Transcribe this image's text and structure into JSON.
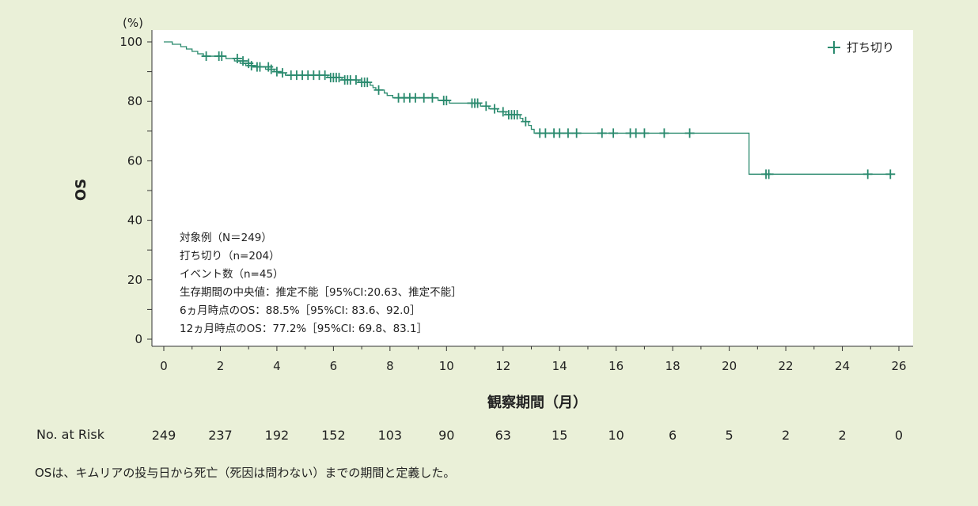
{
  "chart_data": {
    "type": "line",
    "subtype": "kaplan-meier",
    "title": "",
    "xlabel": "観察期間（月）",
    "ylabel": "OS",
    "yunit": "(%)",
    "xlim": [
      0,
      26
    ],
    "ylim": [
      0,
      100
    ],
    "x_ticks": [
      0,
      2,
      4,
      6,
      8,
      10,
      12,
      14,
      16,
      18,
      20,
      22,
      24,
      26
    ],
    "y_ticks": [
      0,
      20,
      40,
      60,
      80,
      100
    ],
    "legend": {
      "label": "打ち切り",
      "position": "top-right"
    },
    "series": [
      {
        "name": "OS",
        "color": "#2a8a6e",
        "steps": [
          [
            0,
            100
          ],
          [
            0.3,
            99.2
          ],
          [
            0.6,
            98.4
          ],
          [
            0.8,
            97.6
          ],
          [
            1.0,
            96.8
          ],
          [
            1.2,
            96.0
          ],
          [
            1.4,
            95.2
          ],
          [
            2.2,
            94.4
          ],
          [
            2.5,
            93.6
          ],
          [
            2.7,
            92.8
          ],
          [
            2.9,
            92.0
          ],
          [
            3.2,
            91.6
          ],
          [
            3.6,
            90.8
          ],
          [
            3.9,
            90.0
          ],
          [
            4.1,
            89.6
          ],
          [
            4.3,
            88.8
          ],
          [
            5.8,
            88.0
          ],
          [
            6.3,
            87.2
          ],
          [
            6.9,
            86.4
          ],
          [
            7.3,
            85.4
          ],
          [
            7.4,
            84.6
          ],
          [
            7.5,
            83.8
          ],
          [
            7.8,
            82.8
          ],
          [
            7.9,
            82.0
          ],
          [
            8.1,
            81.2
          ],
          [
            9.7,
            80.3
          ],
          [
            10.1,
            79.4
          ],
          [
            11.2,
            78.4
          ],
          [
            11.5,
            77.5
          ],
          [
            11.8,
            76.5
          ],
          [
            12.1,
            75.5
          ],
          [
            12.6,
            74.3
          ],
          [
            12.7,
            73.2
          ],
          [
            12.9,
            71.9
          ],
          [
            13.0,
            70.6
          ],
          [
            13.1,
            69.3
          ],
          [
            20.7,
            55.5
          ]
        ],
        "censors": [
          [
            1.5,
            95.2
          ],
          [
            1.95,
            95.2
          ],
          [
            2.05,
            95.2
          ],
          [
            2.6,
            94.4
          ],
          [
            2.8,
            93.6
          ],
          [
            3.0,
            92.8
          ],
          [
            3.1,
            92.0
          ],
          [
            3.3,
            91.6
          ],
          [
            3.4,
            91.6
          ],
          [
            3.7,
            91.6
          ],
          [
            3.8,
            90.8
          ],
          [
            4.0,
            90.0
          ],
          [
            4.2,
            89.6
          ],
          [
            4.5,
            88.8
          ],
          [
            4.7,
            88.8
          ],
          [
            4.9,
            88.8
          ],
          [
            5.1,
            88.8
          ],
          [
            5.3,
            88.8
          ],
          [
            5.5,
            88.8
          ],
          [
            5.7,
            88.8
          ],
          [
            5.9,
            88.0
          ],
          [
            6.0,
            88.0
          ],
          [
            6.1,
            88.0
          ],
          [
            6.2,
            88.0
          ],
          [
            6.4,
            87.2
          ],
          [
            6.5,
            87.2
          ],
          [
            6.6,
            87.2
          ],
          [
            6.8,
            87.2
          ],
          [
            7.0,
            86.4
          ],
          [
            7.1,
            86.4
          ],
          [
            7.2,
            86.4
          ],
          [
            7.6,
            83.8
          ],
          [
            8.3,
            81.2
          ],
          [
            8.5,
            81.2
          ],
          [
            8.7,
            81.2
          ],
          [
            8.9,
            81.2
          ],
          [
            9.2,
            81.2
          ],
          [
            9.5,
            81.2
          ],
          [
            9.9,
            80.3
          ],
          [
            10.0,
            80.3
          ],
          [
            10.9,
            79.4
          ],
          [
            11.0,
            79.4
          ],
          [
            11.1,
            79.4
          ],
          [
            11.4,
            78.4
          ],
          [
            11.7,
            77.5
          ],
          [
            12.0,
            76.5
          ],
          [
            12.2,
            75.5
          ],
          [
            12.3,
            75.5
          ],
          [
            12.4,
            75.5
          ],
          [
            12.5,
            75.5
          ],
          [
            12.8,
            73.2
          ],
          [
            13.3,
            69.3
          ],
          [
            13.5,
            69.3
          ],
          [
            13.8,
            69.3
          ],
          [
            14.0,
            69.3
          ],
          [
            14.3,
            69.3
          ],
          [
            14.6,
            69.3
          ],
          [
            15.5,
            69.3
          ],
          [
            15.9,
            69.3
          ],
          [
            16.5,
            69.3
          ],
          [
            16.7,
            69.3
          ],
          [
            17.0,
            69.3
          ],
          [
            17.7,
            69.3
          ],
          [
            18.6,
            69.3
          ],
          [
            21.3,
            55.5
          ],
          [
            21.4,
            55.5
          ],
          [
            24.9,
            55.5
          ],
          [
            25.7,
            55.5
          ]
        ]
      }
    ]
  },
  "annotation_lines": [
    "対象例（N＝249）",
    "打ち切り（n=204）",
    "イベント数（n=45）",
    "生存期間の中央値：推定不能［95%CI:20.63、推定不能］",
    "6ヵ月時点のOS：88.5%［95%CI: 83.6、92.0］",
    "12ヵ月時点のOS：77.2%［95%CI: 69.8、83.1］"
  ],
  "risk_table": {
    "label": "No. at Risk",
    "times": [
      0,
      2,
      4,
      6,
      8,
      10,
      12,
      14,
      16,
      18,
      20,
      22,
      24,
      26
    ],
    "counts": [
      "249",
      "237",
      "192",
      "152",
      "103",
      "90",
      "63",
      "15",
      "10",
      "6",
      "5",
      "2",
      "2",
      "0"
    ]
  },
  "footnote": "OSは、キムリアの投与日から死亡（死因は問わない）までの期間と定義した。",
  "colors": {
    "background": "#eaf0d8",
    "plot_bg": "#ffffff",
    "curve": "#2a8a6e"
  }
}
